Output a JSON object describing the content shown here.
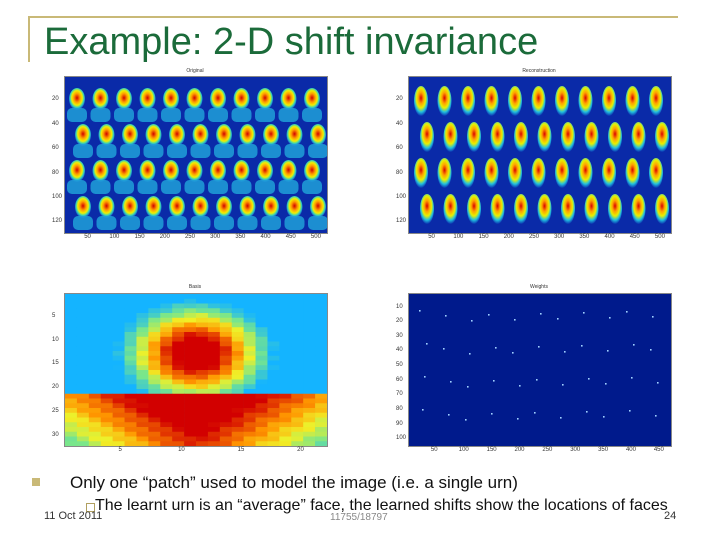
{
  "slide": {
    "title": "Example: 2-D shift invariance",
    "bullet_1": "Only one “patch” used to model the image (i.e. a single urn)",
    "sub_bullet_1": "The learnt urn is an “average” face, the learned shifts show the locations of faces",
    "footer_date": "11 Oct 2011",
    "footer_course": "11755/18797",
    "page_number": "24"
  },
  "panels": {
    "original": {
      "caption": "Original",
      "y_ticks": [
        "20",
        "40",
        "60",
        "80",
        "100",
        "120"
      ],
      "x_ticks": [
        "50",
        "100",
        "150",
        "200",
        "250",
        "300",
        "350",
        "400",
        "450",
        "500"
      ]
    },
    "reconstruction": {
      "caption": "Reconstruction",
      "y_ticks": [
        "20",
        "40",
        "60",
        "80",
        "100",
        "120"
      ],
      "x_ticks": [
        "50",
        "100",
        "150",
        "200",
        "250",
        "300",
        "350",
        "400",
        "450",
        "500"
      ]
    },
    "basis": {
      "caption": "Basis",
      "y_ticks": [
        "5",
        "10",
        "15",
        "20",
        "25",
        "30"
      ],
      "x_ticks": [
        "5",
        "10",
        "15",
        "20"
      ]
    },
    "weights": {
      "caption": "Weights",
      "y_ticks": [
        "10",
        "20",
        "30",
        "40",
        "50",
        "60",
        "70",
        "80",
        "90",
        "100"
      ],
      "x_ticks": [
        "50",
        "100",
        "150",
        "200",
        "250",
        "300",
        "350",
        "400",
        "450"
      ]
    }
  },
  "colors": {
    "title": "#1b6b3a",
    "accent": "#c9b977",
    "colormap_low": "#00108c",
    "colormap_high": "#c80000"
  }
}
